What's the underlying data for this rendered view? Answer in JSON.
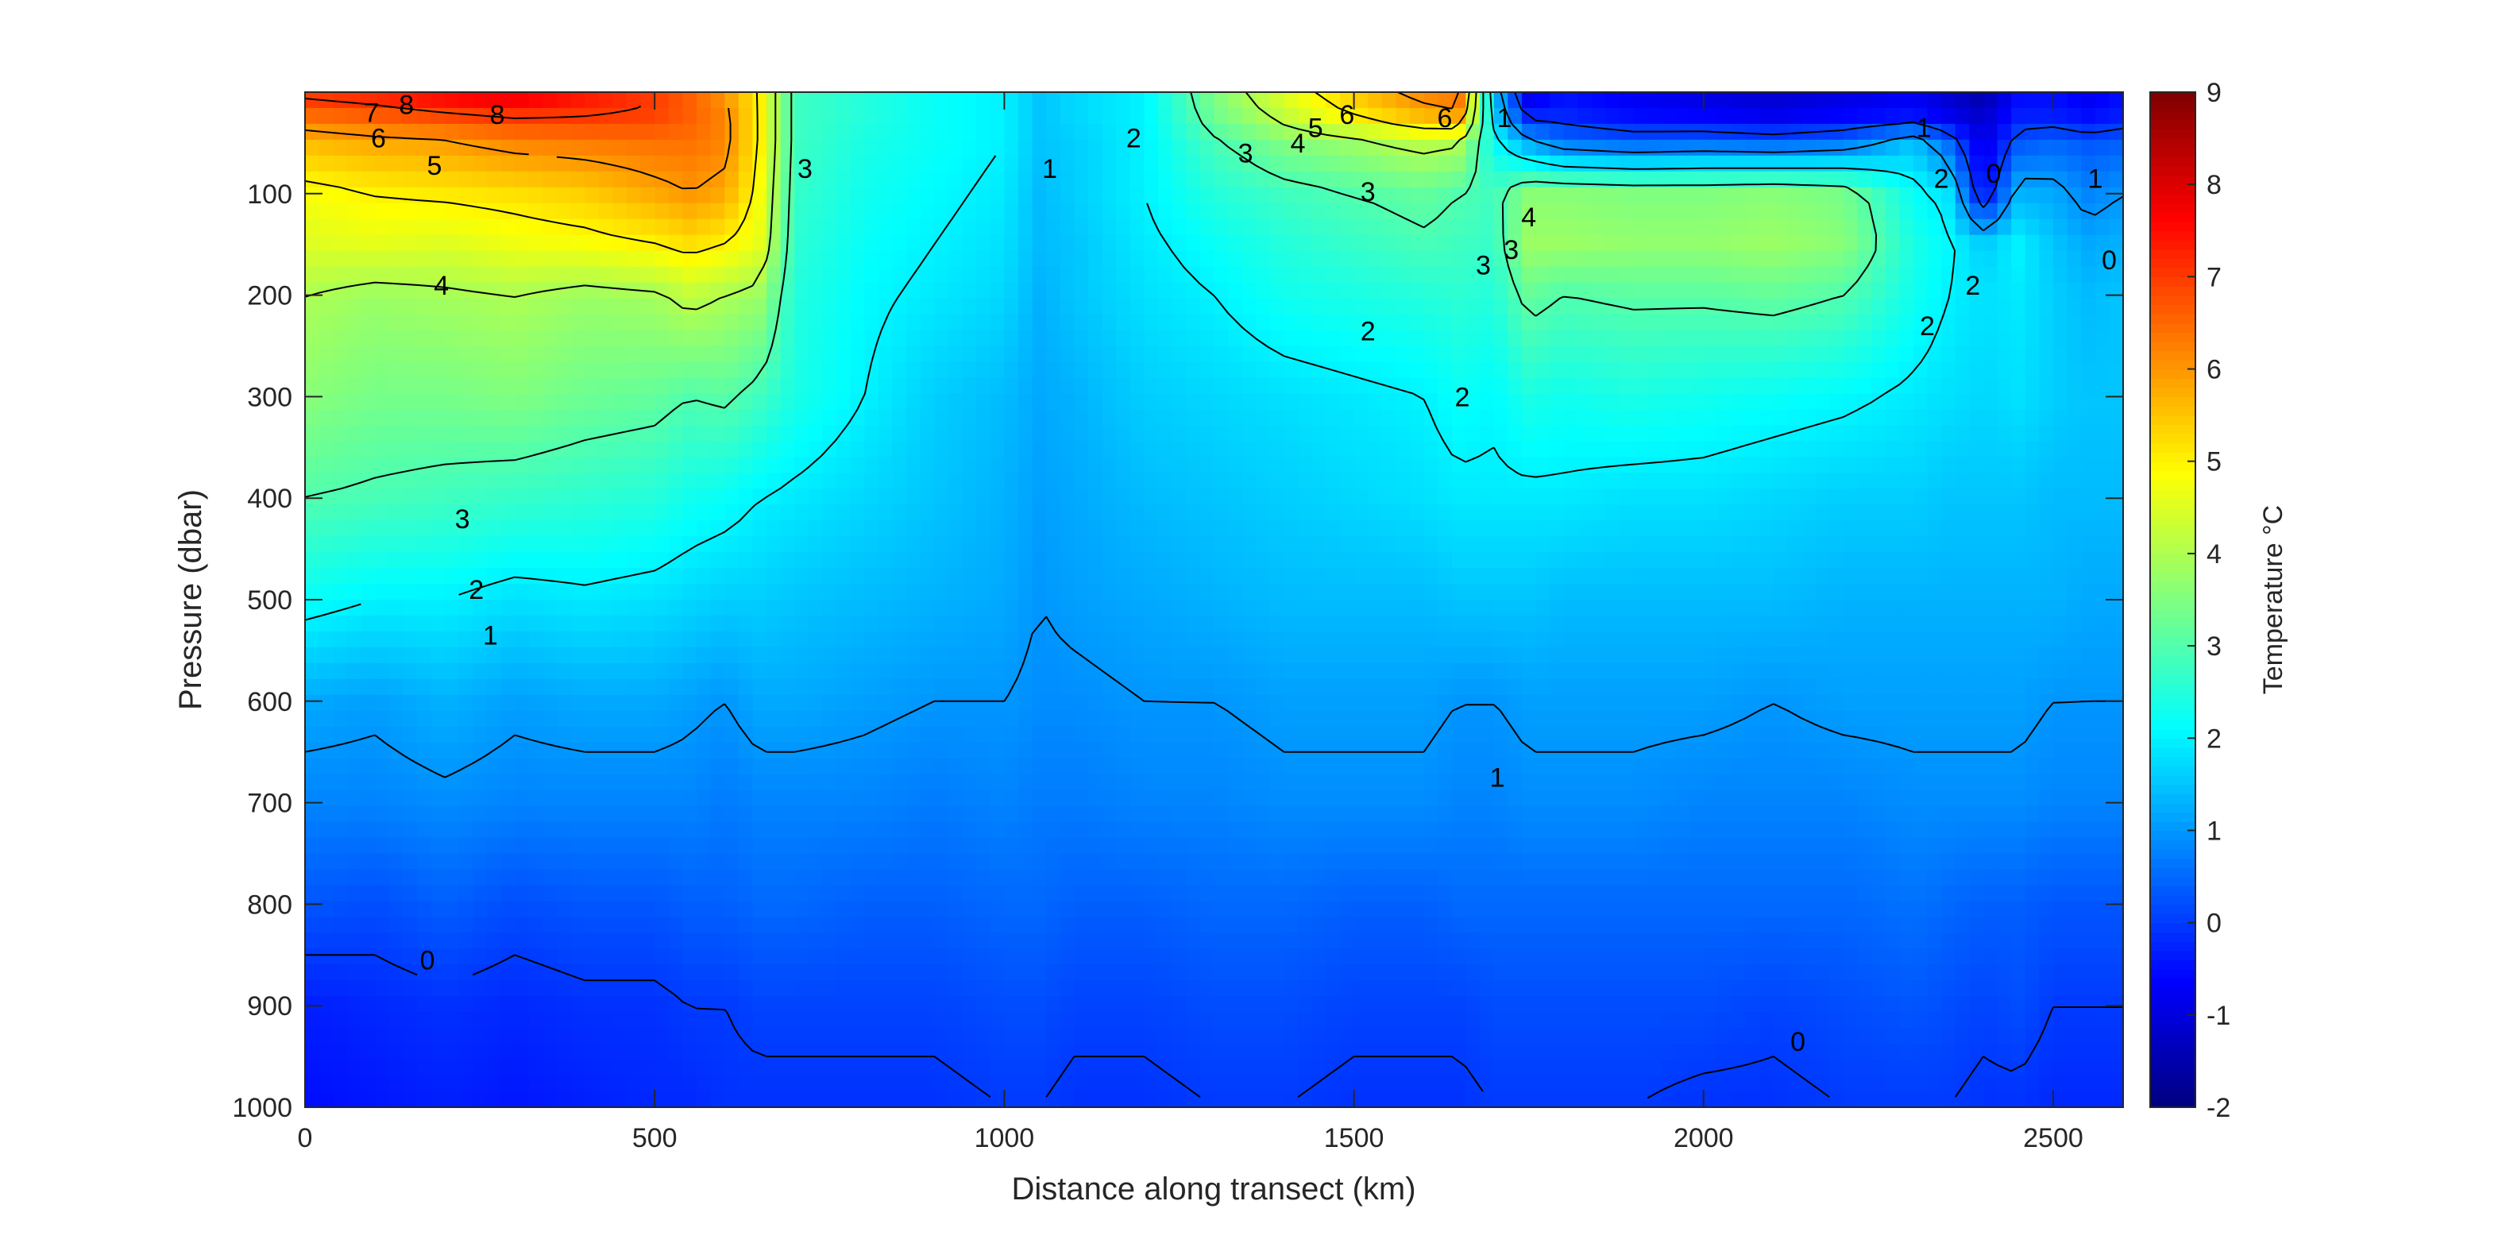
{
  "chart_data": {
    "type": "heatmap",
    "subtype": "filled-contour-section",
    "title": "",
    "xlabel": "Distance along transect (km)",
    "ylabel": "Pressure (dbar)",
    "colorbar_label": "Temperature °C",
    "colormap": "jet",
    "xlim": [
      0,
      2600
    ],
    "ylim": [
      0,
      1000
    ],
    "y_reversed": true,
    "clim": [
      -2,
      9
    ],
    "x_ticks": [
      0,
      500,
      1000,
      1500,
      2000,
      2500
    ],
    "x_tick_labels": [
      "0",
      "500",
      "1000",
      "1500",
      "2000",
      "2500"
    ],
    "y_ticks": [
      100,
      200,
      300,
      400,
      500,
      600,
      700,
      800,
      900,
      1000
    ],
    "y_tick_labels": [
      "100",
      "200",
      "300",
      "400",
      "500",
      "600",
      "700",
      "800",
      "900",
      "1000"
    ],
    "colorbar_ticks": [
      -2,
      -1,
      0,
      1,
      2,
      3,
      4,
      5,
      6,
      7,
      8,
      9
    ],
    "colorbar_tick_labels": [
      "-2",
      "-1",
      "0",
      "1",
      "2",
      "3",
      "4",
      "5",
      "6",
      "7",
      "8",
      "9"
    ],
    "profile_distances_km": [
      0,
      100,
      200,
      300,
      400,
      500,
      550,
      600,
      650,
      700,
      800,
      900,
      1000,
      1050,
      1100,
      1200,
      1300,
      1400,
      1500,
      1600,
      1650,
      1700,
      1750,
      1800,
      1900,
      2000,
      2100,
      2200,
      2300,
      2350,
      2400,
      2450,
      2500,
      2550,
      2600
    ],
    "pressure_levels_dbar": [
      0,
      25,
      50,
      100,
      150,
      200,
      300,
      400,
      500,
      600,
      700,
      800,
      900,
      1000
    ],
    "temperature_degC": [
      [
        7.2,
        7.4,
        7.8,
        8.0,
        7.5,
        7.0,
        6.6,
        6.0,
        5.0,
        2.8,
        2.5,
        2.2,
        2.0,
        1.5,
        1.7,
        2.0,
        3.5,
        4.6,
        5.5,
        6.3,
        6.5,
        1.5,
        -1.0,
        -0.5,
        -0.8,
        -1.0,
        -1.2,
        -1.0,
        -0.8,
        -1.2,
        -1.6,
        -0.6,
        -0.5,
        -0.8,
        -0.5
      ],
      [
        6.4,
        6.6,
        6.8,
        7.0,
        7.0,
        6.9,
        6.6,
        6.2,
        5.0,
        2.8,
        2.5,
        2.2,
        2.0,
        1.5,
        1.7,
        2.0,
        3.3,
        4.2,
        5.0,
        5.6,
        5.8,
        1.8,
        -0.2,
        -0.2,
        -0.5,
        -0.6,
        -0.8,
        -0.6,
        -0.4,
        -0.8,
        -1.2,
        -0.3,
        -0.3,
        -0.5,
        -0.3
      ],
      [
        5.6,
        5.8,
        5.9,
        6.2,
        6.3,
        6.4,
        6.4,
        6.2,
        5.0,
        2.8,
        2.4,
        2.2,
        2.0,
        1.5,
        1.6,
        2.0,
        2.9,
        3.5,
        3.8,
        4.2,
        4.0,
        2.2,
        1.2,
        0.6,
        0.4,
        0.5,
        0.4,
        0.6,
        1.5,
        0.5,
        -1.0,
        0.3,
        0.5,
        0.3,
        0.4
      ],
      [
        4.8,
        5.0,
        5.1,
        5.2,
        5.4,
        5.8,
        6.0,
        5.8,
        4.8,
        2.7,
        2.3,
        2.1,
        1.9,
        1.4,
        1.6,
        2.0,
        2.5,
        2.8,
        3.0,
        3.2,
        3.0,
        2.8,
        3.6,
        3.6,
        3.5,
        3.5,
        3.6,
        3.4,
        2.2,
        1.8,
        -0.6,
        1.3,
        1.2,
        0.8,
        1.0
      ],
      [
        4.5,
        4.6,
        4.5,
        4.7,
        4.8,
        5.0,
        5.2,
        5.0,
        4.6,
        2.6,
        2.2,
        2.0,
        1.8,
        1.4,
        1.5,
        1.9,
        2.2,
        2.5,
        2.7,
        2.9,
        2.8,
        2.7,
        3.8,
        3.8,
        3.7,
        3.7,
        3.8,
        3.6,
        2.4,
        2.1,
        1.6,
        2.0,
        1.5,
        1.2,
        1.3
      ],
      [
        4.0,
        3.8,
        3.9,
        4.0,
        3.8,
        3.9,
        4.2,
        4.0,
        3.8,
        2.5,
        2.1,
        1.9,
        1.7,
        1.3,
        1.5,
        1.8,
        2.0,
        2.3,
        2.4,
        2.5,
        2.6,
        2.5,
        3.2,
        3.0,
        3.1,
        3.1,
        3.2,
        3.0,
        2.3,
        2.0,
        1.8,
        1.9,
        1.6,
        1.4,
        1.5
      ],
      [
        3.6,
        3.4,
        3.4,
        3.5,
        3.3,
        3.2,
        3.0,
        3.1,
        2.8,
        2.4,
        2.0,
        1.6,
        1.4,
        1.2,
        1.3,
        1.6,
        1.7,
        1.8,
        1.9,
        2.0,
        2.2,
        2.1,
        2.4,
        2.3,
        2.4,
        2.3,
        2.2,
        2.1,
        1.9,
        1.8,
        1.7,
        1.8,
        1.6,
        1.5,
        1.5
      ],
      [
        3.0,
        2.9,
        2.8,
        2.7,
        2.6,
        2.5,
        2.3,
        2.2,
        2.0,
        1.9,
        1.7,
        1.5,
        1.3,
        1.1,
        1.2,
        1.4,
        1.5,
        1.6,
        1.7,
        1.8,
        1.9,
        1.9,
        1.9,
        1.9,
        1.8,
        1.8,
        1.7,
        1.6,
        1.6,
        1.5,
        1.5,
        1.5,
        1.4,
        1.4,
        1.4
      ],
      [
        2.2,
        2.0,
        2.0,
        1.8,
        1.9,
        1.8,
        1.7,
        1.6,
        1.6,
        1.5,
        1.4,
        1.3,
        1.2,
        1.0,
        1.1,
        1.2,
        1.3,
        1.4,
        1.4,
        1.4,
        1.5,
        1.5,
        1.5,
        1.4,
        1.4,
        1.4,
        1.4,
        1.3,
        1.3,
        1.3,
        1.3,
        1.3,
        1.3,
        1.2,
        1.2
      ],
      [
        1.2,
        1.1,
        1.3,
        1.1,
        1.2,
        1.2,
        1.1,
        1.0,
        1.2,
        1.2,
        1.1,
        1.0,
        1.0,
        0.9,
        0.9,
        1.0,
        1.0,
        1.1,
        1.1,
        1.1,
        1.0,
        1.0,
        1.1,
        1.1,
        1.1,
        1.1,
        1.0,
        1.1,
        1.1,
        1.1,
        1.1,
        1.1,
        1.0,
        1.0,
        1.0
      ],
      [
        0.8,
        0.8,
        0.9,
        0.8,
        0.8,
        0.8,
        0.8,
        0.7,
        0.8,
        0.8,
        0.8,
        0.7,
        0.8,
        0.7,
        0.7,
        0.8,
        0.8,
        0.9,
        0.9,
        0.9,
        0.8,
        0.8,
        0.9,
        0.9,
        0.9,
        0.8,
        0.8,
        0.8,
        0.9,
        0.9,
        0.9,
        0.9,
        0.8,
        0.8,
        0.8
      ],
      [
        0.3,
        0.2,
        0.4,
        0.2,
        0.3,
        0.3,
        0.4,
        0.4,
        0.5,
        0.5,
        0.4,
        0.4,
        0.5,
        0.5,
        0.4,
        0.4,
        0.5,
        0.5,
        0.4,
        0.4,
        0.5,
        0.5,
        0.5,
        0.5,
        0.5,
        0.5,
        0.5,
        0.5,
        0.6,
        0.5,
        0.4,
        0.4,
        0.3,
        0.3,
        0.3
      ],
      [
        -0.3,
        -0.2,
        -0.1,
        -0.2,
        -0.1,
        -0.1,
        0.0,
        0.0,
        0.1,
        0.1,
        0.1,
        0.1,
        0.2,
        0.2,
        0.1,
        0.1,
        0.2,
        0.2,
        0.1,
        0.1,
        0.1,
        0.2,
        0.2,
        0.2,
        0.2,
        0.2,
        0.1,
        0.2,
        0.3,
        0.2,
        0.1,
        0.2,
        0.0,
        0.0,
        0.0
      ],
      [
        -0.5,
        -0.4,
        -0.3,
        -0.4,
        -0.3,
        -0.2,
        -0.2,
        -0.1,
        -0.1,
        -0.1,
        -0.1,
        -0.1,
        0.0,
        0.0,
        -0.1,
        -0.1,
        0.0,
        0.0,
        -0.1,
        -0.1,
        -0.1,
        0.0,
        0.0,
        0.0,
        0.0,
        -0.1,
        -0.1,
        0.0,
        0.0,
        0.0,
        -0.1,
        -0.1,
        -0.2,
        -0.2,
        -0.2
      ]
    ],
    "contour_levels": [
      0,
      1,
      2,
      3,
      4,
      5,
      6,
      7,
      8
    ],
    "contour_labels": [
      {
        "text": "8",
        "x": 145,
        "y": 12
      },
      {
        "text": "7",
        "x": 95,
        "y": 20
      },
      {
        "text": "8",
        "x": 275,
        "y": 22
      },
      {
        "text": "6",
        "x": 105,
        "y": 45
      },
      {
        "text": "5",
        "x": 185,
        "y": 72
      },
      {
        "text": "3",
        "x": 715,
        "y": 75
      },
      {
        "text": "1",
        "x": 1065,
        "y": 75
      },
      {
        "text": "2",
        "x": 1185,
        "y": 45
      },
      {
        "text": "3",
        "x": 1345,
        "y": 60
      },
      {
        "text": "4",
        "x": 1420,
        "y": 50
      },
      {
        "text": "5",
        "x": 1445,
        "y": 35
      },
      {
        "text": "6",
        "x": 1490,
        "y": 22
      },
      {
        "text": "6",
        "x": 1630,
        "y": 25
      },
      {
        "text": "1",
        "x": 1715,
        "y": 25
      },
      {
        "text": "3",
        "x": 1520,
        "y": 98
      },
      {
        "text": "4",
        "x": 1750,
        "y": 123
      },
      {
        "text": "3",
        "x": 1725,
        "y": 155
      },
      {
        "text": "3",
        "x": 1685,
        "y": 170
      },
      {
        "text": "4",
        "x": 195,
        "y": 190
      },
      {
        "text": "2",
        "x": 1520,
        "y": 235
      },
      {
        "text": "2",
        "x": 1655,
        "y": 300
      },
      {
        "text": "1",
        "x": 2315,
        "y": 35
      },
      {
        "text": "2",
        "x": 2340,
        "y": 85
      },
      {
        "text": "0",
        "x": 2415,
        "y": 80
      },
      {
        "text": "2",
        "x": 2385,
        "y": 190
      },
      {
        "text": "2",
        "x": 2320,
        "y": 230
      },
      {
        "text": "1",
        "x": 2560,
        "y": 85
      },
      {
        "text": "0",
        "x": 2580,
        "y": 165
      },
      {
        "text": "3",
        "x": 225,
        "y": 420
      },
      {
        "text": "2",
        "x": 245,
        "y": 490
      },
      {
        "text": "1",
        "x": 265,
        "y": 535
      },
      {
        "text": "1",
        "x": 1705,
        "y": 675
      },
      {
        "text": "0",
        "x": 175,
        "y": 855
      },
      {
        "text": "0",
        "x": 2135,
        "y": 935
      }
    ]
  }
}
